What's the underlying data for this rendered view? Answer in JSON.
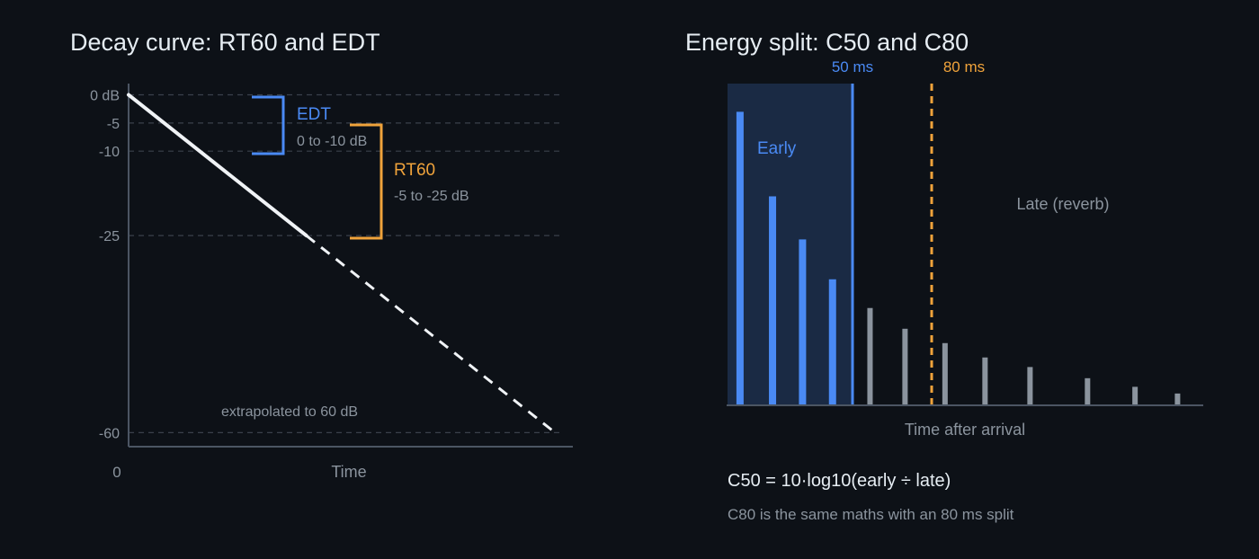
{
  "colors": {
    "background": "#0d1117",
    "text": "#e6edf3",
    "muted": "#8b949e",
    "axis": "#4b5563",
    "grid": "#3a414b",
    "early": "#4a8af4",
    "rt60": "#f0a33b",
    "late_bar": "#8b949e",
    "early_region": "#1a2a44",
    "curve": "#f0f3f6"
  },
  "left_panel": {
    "title": "Decay curve: RT60 and EDT",
    "xlabel": "Time",
    "x_origin_label": "0",
    "extrapolated_label": "extrapolated to 60 dB",
    "edt": {
      "label": "EDT",
      "range": "0 to -10 dB"
    },
    "rt60": {
      "label": "RT60",
      "range": "-5 to -25 dB"
    }
  },
  "right_panel": {
    "title": "Energy split: C50 and C80",
    "marker_50": "50 ms",
    "marker_80": "80 ms",
    "early_label": "Early",
    "late_label": "Late (reverb)",
    "xlabel": "Time after arrival",
    "formula": "C50 = 10·log10(early ÷ late)",
    "note": "C80 is the same maths with an 80 ms split"
  },
  "chart_data": [
    {
      "type": "line",
      "title": "Decay curve: RT60 and EDT",
      "xlabel": "Time",
      "ylabel": "",
      "y_ticks": [
        {
          "value": 0,
          "label": "0 dB"
        },
        {
          "value": -5,
          "label": "-5"
        },
        {
          "value": -10,
          "label": "-10"
        },
        {
          "value": -25,
          "label": "-25"
        },
        {
          "value": -60,
          "label": "-60"
        }
      ],
      "ylim": [
        -62.5,
        2
      ],
      "xlim": [
        0,
        1
      ],
      "grid": true,
      "series": [
        {
          "style": "solid",
          "x": [
            0,
            0.4
          ],
          "y": [
            0,
            -25
          ]
        },
        {
          "style": "dashed",
          "x": [
            0.4,
            0.96
          ],
          "y": [
            -25,
            -60
          ]
        }
      ],
      "brackets": [
        {
          "label": "EDT",
          "from": 0,
          "to": -10
        },
        {
          "label": "RT60",
          "from": -5,
          "to": -25
        }
      ]
    },
    {
      "type": "bar",
      "title": "Energy split: C50 and C80",
      "xlabel": "Time after arrival",
      "xlim": [
        0,
        120
      ],
      "ylim": [
        0,
        1
      ],
      "split_markers_ms": [
        50,
        80
      ],
      "x_ms": [
        5,
        18,
        30,
        42,
        57,
        71,
        87,
        103,
        121,
        144,
        163,
        180
      ],
      "values": [
        0.92,
        0.655,
        0.52,
        0.395,
        0.305,
        0.24,
        0.195,
        0.15,
        0.12,
        0.085,
        0.058,
        0.037
      ],
      "groups": [
        "early",
        "early",
        "early",
        "early",
        "late",
        "late",
        "late",
        "late",
        "late",
        "late",
        "late",
        "late"
      ]
    }
  ]
}
